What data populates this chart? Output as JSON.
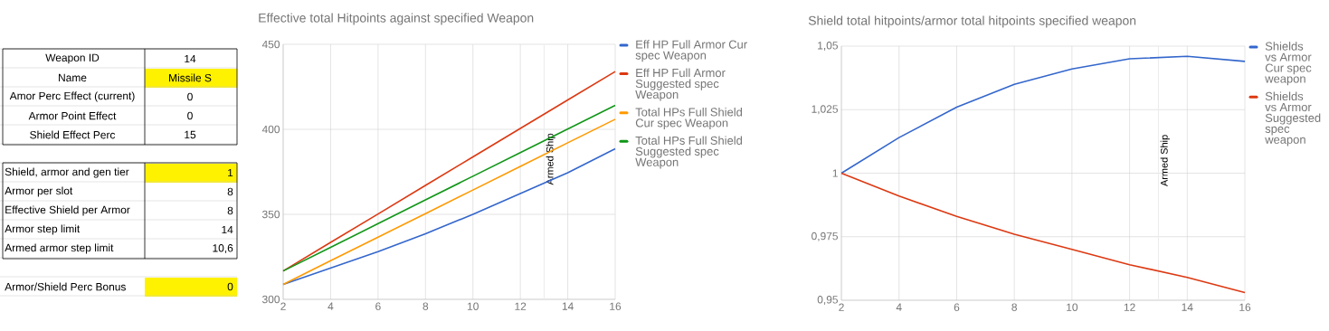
{
  "chart_data": [
    {
      "type": "other",
      "annotations": [
        "Weapon ID",
        "14",
        "Name",
        "Missile S",
        "Amor Perc Effect (current)",
        "0",
        "Armor Point Effect",
        "0",
        "Shield Effect Perc",
        "15",
        "Shield, armor and gen tier",
        "1",
        "Armor per slot",
        "8",
        "Effective Shield per Armor",
        "8",
        "Armor step limit",
        "14",
        "Armed armor step limit",
        "10,6",
        "Armor/Shield Perc Bonus",
        "0"
      ]
    },
    {
      "type": "line",
      "title": "Effective total Hitpoints against specified Weapon",
      "x": [
        2,
        4,
        6,
        8,
        10,
        12,
        14,
        16
      ],
      "series": [
        {
          "name": "Eff HP Full Armor Cur spec Weapon",
          "color": "#3366cc",
          "values": [
            308.8,
            318.4,
            328.0,
            338.6,
            350.0,
            362.2,
            374.5,
            388.6
          ]
        },
        {
          "name": "Eff HP Full Armor Suggested spec Weapon",
          "color": "#dc3912",
          "values": [
            316.7,
            333.5,
            350.2,
            367.0,
            383.8,
            400.5,
            417.3,
            434.0
          ]
        },
        {
          "name": "Total HPs Full Shield Cur spec Weapon",
          "color": "#ff9900",
          "values": [
            308.8,
            322.7,
            336.6,
            350.4,
            364.3,
            378.2,
            392.1,
            405.9
          ]
        },
        {
          "name": "Total HPs Full Shield Suggested spec Weapon",
          "color": "#109618",
          "values": [
            316.7,
            330.6,
            344.5,
            358.5,
            372.4,
            386.3,
            400.2,
            414.1
          ]
        }
      ],
      "xlim": [
        2,
        16
      ],
      "xticks": [
        2,
        4,
        6,
        8,
        10,
        12,
        14,
        16
      ],
      "ylim": [
        300,
        450
      ],
      "yticks": [
        300,
        350,
        400,
        450
      ],
      "ref_lines": [
        {
          "axis": "x",
          "value": 13,
          "label": "Armed Ship",
          "color": "#ebebeb"
        }
      ],
      "grid": true,
      "legend": "right"
    },
    {
      "type": "line",
      "title": "Shield total hitpoints/armor total hitpoints specified weapon",
      "x": [
        2,
        4,
        6,
        8,
        10,
        12,
        14,
        16
      ],
      "series": [
        {
          "name": "Shields vs Armor Cur spec weapon",
          "color": "#3366cc",
          "values": [
            1.0,
            1.014,
            1.026,
            1.035,
            1.041,
            1.045,
            1.046,
            1.044
          ]
        },
        {
          "name": "Shields vs Armor Suggested spec weapon",
          "color": "#dc3912",
          "values": [
            1.0,
            0.991,
            0.983,
            0.976,
            0.97,
            0.964,
            0.959,
            0.953
          ]
        }
      ],
      "xlim": [
        2,
        16
      ],
      "xticks": [
        2,
        4,
        6,
        8,
        10,
        12,
        14,
        16
      ],
      "ylim": [
        0.95,
        1.05
      ],
      "yticks": [
        {
          "value": 0.95,
          "label": "0,95"
        },
        {
          "value": 0.975,
          "label": "0,975"
        },
        {
          "value": 1,
          "label": "1"
        },
        {
          "value": 1.025,
          "label": "1,025"
        },
        {
          "value": 1.05,
          "label": "1,05"
        }
      ],
      "ref_lines": [
        {
          "axis": "x",
          "value": 13,
          "label": "Armed Ship",
          "color": "#ebebeb"
        }
      ],
      "grid": true,
      "legend": "right"
    }
  ]
}
